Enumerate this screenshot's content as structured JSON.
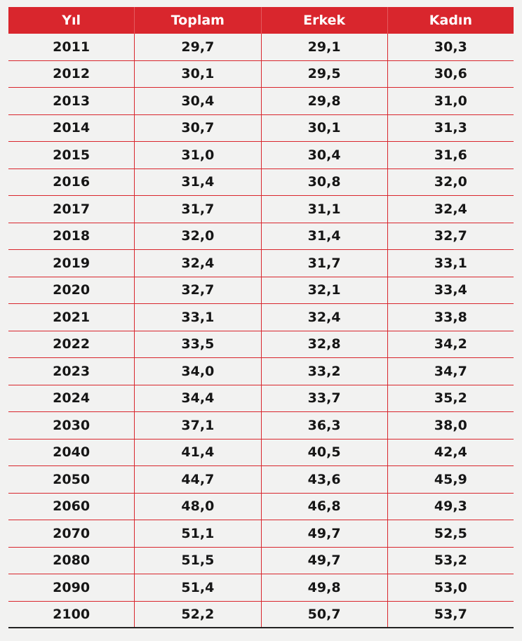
{
  "table": {
    "header": [
      "Yıl",
      "Toplam",
      "Erkek",
      "Kadın"
    ],
    "rows": [
      [
        "2011",
        "29,7",
        "29,1",
        "30,3"
      ],
      [
        "2012",
        "30,1",
        "29,5",
        "30,6"
      ],
      [
        "2013",
        "30,4",
        "29,8",
        "31,0"
      ],
      [
        "2014",
        "30,7",
        "30,1",
        "31,3"
      ],
      [
        "2015",
        "31,0",
        "30,4",
        "31,6"
      ],
      [
        "2016",
        "31,4",
        "30,8",
        "32,0"
      ],
      [
        "2017",
        "31,7",
        "31,1",
        "32,4"
      ],
      [
        "2018",
        "32,0",
        "31,4",
        "32,7"
      ],
      [
        "2019",
        "32,4",
        "31,7",
        "33,1"
      ],
      [
        "2020",
        "32,7",
        "32,1",
        "33,4"
      ],
      [
        "2021",
        "33,1",
        "32,4",
        "33,8"
      ],
      [
        "2022",
        "33,5",
        "32,8",
        "34,2"
      ],
      [
        "2023",
        "34,0",
        "33,2",
        "34,7"
      ],
      [
        "2024",
        "34,4",
        "33,7",
        "35,2"
      ],
      [
        "2030",
        "37,1",
        "36,3",
        "38,0"
      ],
      [
        "2040",
        "41,4",
        "40,5",
        "42,4"
      ],
      [
        "2050",
        "44,7",
        "43,6",
        "45,9"
      ],
      [
        "2060",
        "48,0",
        "46,8",
        "49,3"
      ],
      [
        "2070",
        "51,1",
        "49,7",
        "52,5"
      ],
      [
        "2080",
        "51,5",
        "49,7",
        "53,2"
      ],
      [
        "2090",
        "51,4",
        "49,8",
        "53,0"
      ],
      [
        "2100",
        "52,2",
        "50,7",
        "53,7"
      ]
    ]
  }
}
